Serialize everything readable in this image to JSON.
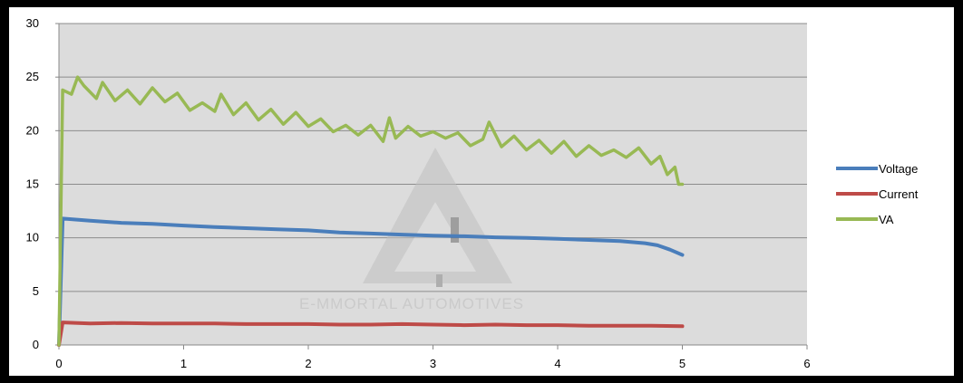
{
  "watermark": {
    "text": "E-MMORTAL AUTOMOTIVES"
  },
  "chart_data": {
    "type": "line",
    "title": "",
    "xlabel": "",
    "ylabel": "",
    "xlim": [
      0,
      6
    ],
    "ylim": [
      0,
      30
    ],
    "xticks": [
      0,
      1,
      2,
      3,
      4,
      5,
      6
    ],
    "yticks": [
      0,
      5,
      10,
      15,
      20,
      25,
      30
    ],
    "x_tick_labels": [
      "0",
      "1",
      "2",
      "3",
      "4",
      "5",
      "6"
    ],
    "y_tick_labels": [
      "0",
      "5",
      "10",
      "15",
      "20",
      "25",
      "30"
    ],
    "grid": "horizontal",
    "legend_position": "right",
    "series": [
      {
        "name": "Voltage",
        "color": "#4a7ebb",
        "points": [
          [
            0,
            0
          ],
          [
            0.03,
            11.8
          ],
          [
            0.25,
            11.6
          ],
          [
            0.5,
            11.4
          ],
          [
            0.75,
            11.3
          ],
          [
            1.0,
            11.15
          ],
          [
            1.25,
            11.0
          ],
          [
            1.5,
            10.9
          ],
          [
            1.75,
            10.8
          ],
          [
            2.0,
            10.7
          ],
          [
            2.25,
            10.5
          ],
          [
            2.5,
            10.4
          ],
          [
            2.75,
            10.3
          ],
          [
            3.0,
            10.2
          ],
          [
            3.25,
            10.15
          ],
          [
            3.5,
            10.05
          ],
          [
            3.75,
            10.0
          ],
          [
            4.0,
            9.9
          ],
          [
            4.25,
            9.8
          ],
          [
            4.5,
            9.7
          ],
          [
            4.7,
            9.5
          ],
          [
            4.8,
            9.3
          ],
          [
            4.9,
            8.9
          ],
          [
            5.0,
            8.4
          ]
        ]
      },
      {
        "name": "Current",
        "color": "#be4b48",
        "points": [
          [
            0,
            0
          ],
          [
            0.03,
            2.1
          ],
          [
            0.25,
            2.0
          ],
          [
            0.5,
            2.05
          ],
          [
            0.75,
            2.0
          ],
          [
            1.0,
            2.0
          ],
          [
            1.25,
            2.0
          ],
          [
            1.5,
            1.95
          ],
          [
            1.75,
            1.95
          ],
          [
            2.0,
            1.95
          ],
          [
            2.25,
            1.9
          ],
          [
            2.5,
            1.9
          ],
          [
            2.75,
            1.95
          ],
          [
            3.0,
            1.9
          ],
          [
            3.25,
            1.85
          ],
          [
            3.5,
            1.9
          ],
          [
            3.75,
            1.85
          ],
          [
            4.0,
            1.85
          ],
          [
            4.25,
            1.8
          ],
          [
            4.5,
            1.8
          ],
          [
            4.75,
            1.8
          ],
          [
            5.0,
            1.75
          ]
        ]
      },
      {
        "name": "VA",
        "color": "#98b954",
        "points": [
          [
            0,
            0
          ],
          [
            0.03,
            23.8
          ],
          [
            0.1,
            23.4
          ],
          [
            0.15,
            25.0
          ],
          [
            0.2,
            24.2
          ],
          [
            0.3,
            23.0
          ],
          [
            0.35,
            24.5
          ],
          [
            0.45,
            22.8
          ],
          [
            0.55,
            23.8
          ],
          [
            0.65,
            22.5
          ],
          [
            0.75,
            24.0
          ],
          [
            0.85,
            22.7
          ],
          [
            0.95,
            23.5
          ],
          [
            1.05,
            21.9
          ],
          [
            1.15,
            22.6
          ],
          [
            1.25,
            21.8
          ],
          [
            1.3,
            23.4
          ],
          [
            1.4,
            21.5
          ],
          [
            1.5,
            22.6
          ],
          [
            1.6,
            21.0
          ],
          [
            1.7,
            22.0
          ],
          [
            1.8,
            20.6
          ],
          [
            1.9,
            21.7
          ],
          [
            2.0,
            20.4
          ],
          [
            2.1,
            21.1
          ],
          [
            2.2,
            19.9
          ],
          [
            2.3,
            20.5
          ],
          [
            2.4,
            19.6
          ],
          [
            2.5,
            20.5
          ],
          [
            2.6,
            19.0
          ],
          [
            2.65,
            21.2
          ],
          [
            2.7,
            19.3
          ],
          [
            2.8,
            20.4
          ],
          [
            2.9,
            19.5
          ],
          [
            3.0,
            19.9
          ],
          [
            3.1,
            19.3
          ],
          [
            3.2,
            19.8
          ],
          [
            3.3,
            18.6
          ],
          [
            3.4,
            19.2
          ],
          [
            3.45,
            20.8
          ],
          [
            3.55,
            18.5
          ],
          [
            3.65,
            19.5
          ],
          [
            3.75,
            18.2
          ],
          [
            3.85,
            19.1
          ],
          [
            3.95,
            17.9
          ],
          [
            4.05,
            19.0
          ],
          [
            4.15,
            17.6
          ],
          [
            4.25,
            18.6
          ],
          [
            4.35,
            17.7
          ],
          [
            4.45,
            18.2
          ],
          [
            4.55,
            17.5
          ],
          [
            4.65,
            18.4
          ],
          [
            4.75,
            16.9
          ],
          [
            4.82,
            17.6
          ],
          [
            4.88,
            15.9
          ],
          [
            4.94,
            16.6
          ],
          [
            4.97,
            15.0
          ],
          [
            5.0,
            15.0
          ]
        ]
      }
    ]
  }
}
